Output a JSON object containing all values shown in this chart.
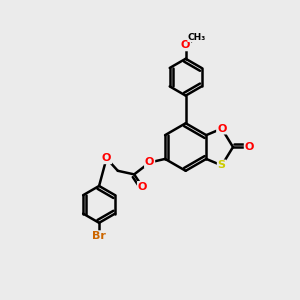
{
  "background_color": "#ebebeb",
  "atom_colors": {
    "O": "#ff0000",
    "S": "#cccc00",
    "Br": "#cc6600",
    "C": "#000000"
  },
  "bond_color": "#000000",
  "bond_width": 1.8,
  "font_size_atoms": 8,
  "figsize": [
    3.0,
    3.0
  ],
  "dpi": 100
}
